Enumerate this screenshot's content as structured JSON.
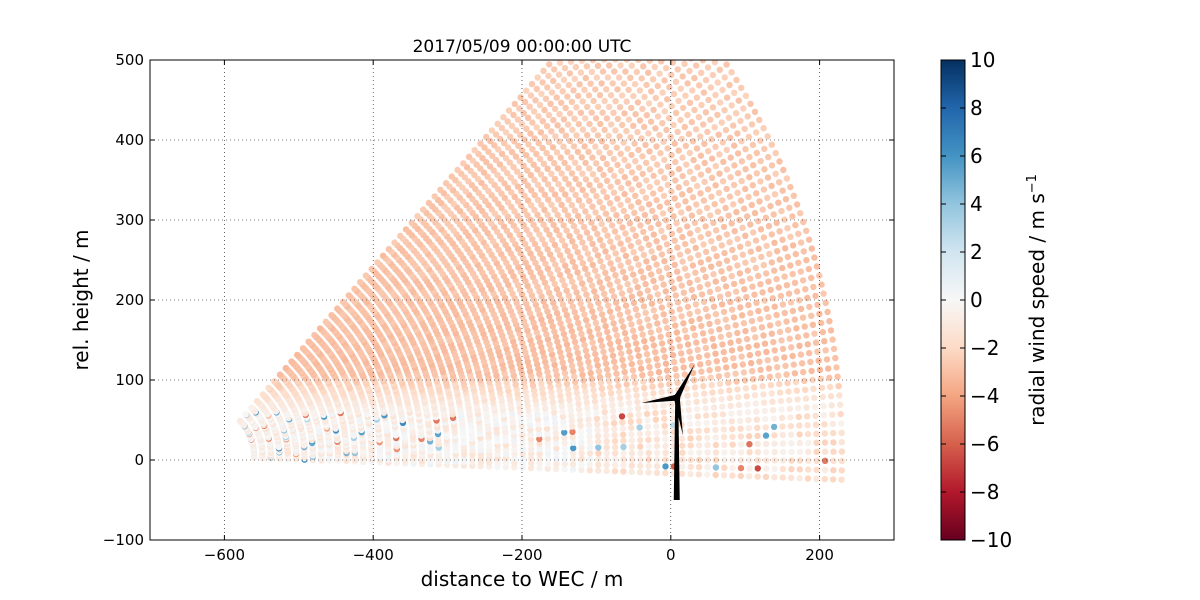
{
  "chart_data": {
    "type": "scatter",
    "title": "2017/05/09 00:00:00 UTC",
    "xlabel": "distance to WEC / m",
    "ylabel": "rel. height / m",
    "xlim": [
      -700,
      300
    ],
    "ylim": [
      -100,
      500
    ],
    "x_ticks": [
      -600,
      -400,
      -200,
      0,
      200
    ],
    "y_ticks": [
      -100,
      0,
      100,
      200,
      300,
      400,
      500
    ],
    "x_tick_labels": [
      "−600",
      "−400",
      "−200",
      "0",
      "200"
    ],
    "y_tick_labels": [
      "−100",
      "0",
      "100",
      "200",
      "300",
      "400",
      "500"
    ],
    "grid": true,
    "colormap": "RdBu",
    "colorbar": {
      "label_text": "radial wind speed / m s",
      "label_exponent": "−1",
      "range": [
        -10,
        10
      ],
      "ticks": [
        10,
        8,
        6,
        4,
        2,
        0,
        -2,
        -4,
        -6,
        -8,
        -10
      ],
      "tick_labels": [
        "10",
        "8",
        "6",
        "4",
        "2",
        "0",
        "−2",
        "−4",
        "−6",
        "−8",
        "−10"
      ]
    },
    "scan": {
      "description_free": true,
      "range_min_m": 60,
      "range_max_m": 850,
      "elevation_min_deg": -2,
      "elevation_max_deg": 47,
      "origin_x_m": -620,
      "origin_y_m": 5,
      "bulk_wind_speed_above_100m": -3.0,
      "near_surface_wind_speed": -0.5
    },
    "turbine": {
      "x_m": 8,
      "hub_height_m": 78,
      "tower_base_m": -50,
      "blade_length_m": 48,
      "blade_angles_deg": [
        60,
        188,
        -80
      ]
    }
  }
}
